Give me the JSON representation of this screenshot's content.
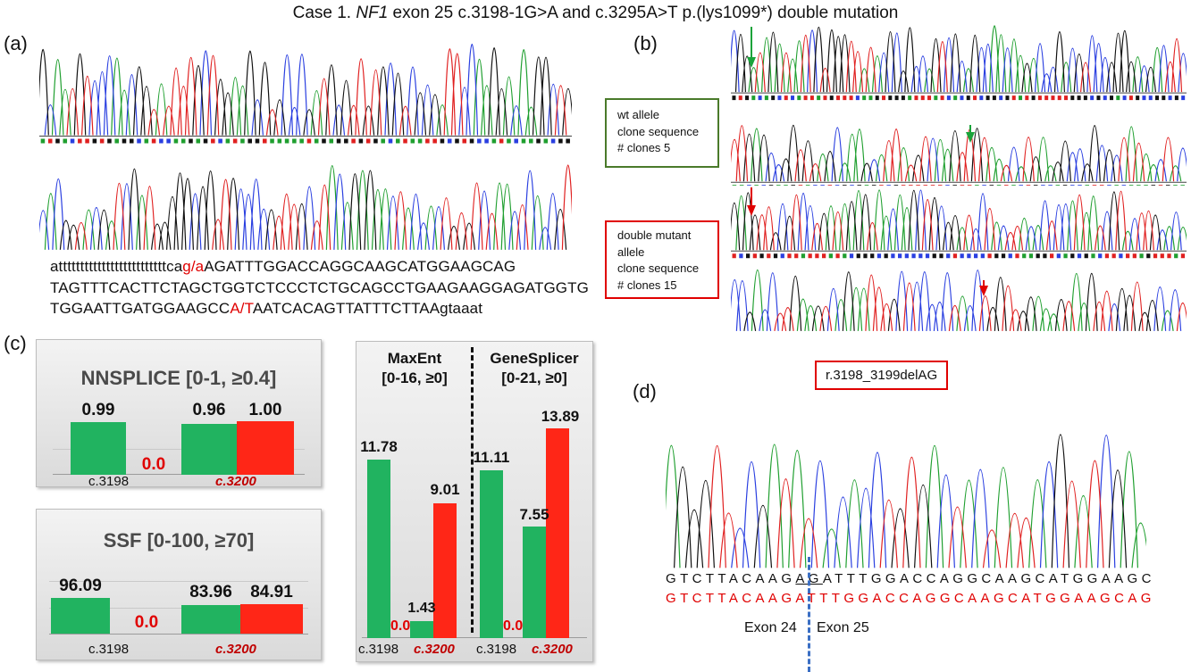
{
  "title": {
    "pre": "Case 1. ",
    "gene": "NF1",
    "post": " exon 25 c.3198-1G>A and  c.3295A>T p.(lys1099*) double mutation"
  },
  "panel_labels": {
    "a": "(a)",
    "b": "(b)",
    "c": "(c)",
    "d": "(d)"
  },
  "panel_a": {
    "line1_pre": "atttttttttttttttttttttttttca",
    "line1_mut": "g/a",
    "line1_post": "AGATTTGGACCAGGCAAGCATGGAAGCAG",
    "line2": "TAGTTTCACTTCTAGCTGGTCTCCCTCTGCAGCCTGAAGAAGGAGATGGTG",
    "line3_pre": "TGGAATTGATGGAAGCC",
    "line3_mut": "A/T",
    "line3_post": "AATCACAGTTATTTCTTAAgtaaat"
  },
  "panel_b": {
    "wt_box": [
      "wt allele",
      "clone sequence",
      "# clones 5"
    ],
    "mut_box": [
      "double mutant",
      "allele",
      "clone sequence",
      "# clones 15"
    ],
    "colors": {
      "wt": "#4a7a2a",
      "mut": "#e00000"
    }
  },
  "panel_c": {
    "nnsplice": {
      "title": "NNSPLICE [0-1, ≥0.4]",
      "values": [
        "0.99",
        "0.0",
        "0.96",
        "1.00"
      ],
      "cats": [
        "c.3198",
        "c.3200"
      ]
    },
    "ssf": {
      "title": "SSF [0-100, ≥70]",
      "values": [
        "96.09",
        "0.0",
        "83.96",
        "84.91"
      ],
      "cats": [
        "c.3198",
        "c.3200"
      ]
    },
    "maxent": {
      "title1": "MaxEnt",
      "title2": "[0-16, ≥0]",
      "values": [
        "11.78",
        "0.0",
        "1.43",
        "9.01"
      ],
      "cats": [
        "c.3198",
        "c.3200"
      ]
    },
    "genesplicer": {
      "title1": "GeneSplicer",
      "title2": "[0-21, ≥0]",
      "values": [
        "11.11",
        "0.0",
        "7.55",
        "13.89"
      ],
      "cats": [
        "c.3198",
        "c.3200"
      ]
    },
    "colors": {
      "wt": "#21b360",
      "mut": "#ff2617"
    }
  },
  "chart_data": [
    {
      "type": "bar",
      "title": "NNSPLICE [0-1, ≥0.4]",
      "categories": [
        "c.3198",
        "c.3200"
      ],
      "series": [
        {
          "values": [
            0.99,
            0.96
          ]
        },
        {
          "values": [
            0.0,
            1.0
          ]
        }
      ]
    },
    {
      "type": "bar",
      "title": "SSF [0-100, ≥70]",
      "categories": [
        "c.3198",
        "c.3200"
      ],
      "series": [
        {
          "values": [
            96.09,
            83.96
          ]
        },
        {
          "values": [
            0.0,
            84.91
          ]
        }
      ]
    },
    {
      "type": "bar",
      "title": "MaxEnt [0-16, ≥0]",
      "categories": [
        "c.3198",
        "c.3200"
      ],
      "series": [
        {
          "values": [
            11.78,
            1.43
          ]
        },
        {
          "values": [
            0.0,
            9.01
          ]
        }
      ]
    },
    {
      "type": "bar",
      "title": "GeneSplicer [0-21, ≥0]",
      "categories": [
        "c.3198",
        "c.3200"
      ],
      "series": [
        {
          "values": [
            11.11,
            7.55
          ]
        },
        {
          "values": [
            0.0,
            13.89
          ]
        }
      ]
    }
  ],
  "panel_d": {
    "label_box": "r.3198_3199delAG",
    "seq_black_pre": "GTCTTACAAG",
    "seq_black_ul": "AG",
    "seq_black_post": "ATTTGGACCAGGCAAGCATGGAAGC",
    "seq_red": "GTCTTACAAGATTTGGACCAGGCAAGCATGGAAGCAG",
    "exon_left": "Exon 24",
    "exon_right": "Exon 25"
  }
}
